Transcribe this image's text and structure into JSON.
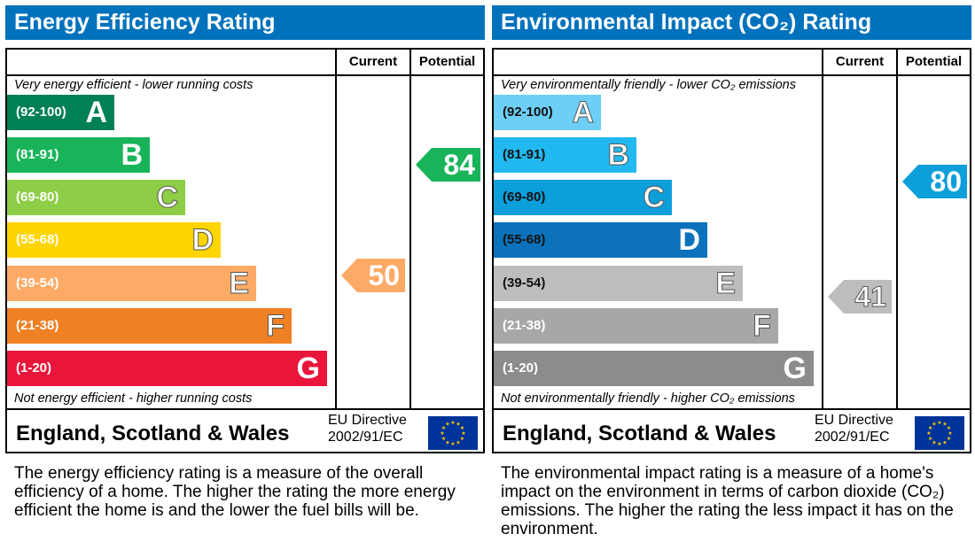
{
  "panels": [
    {
      "title": "Energy Efficiency Rating",
      "col_current": "Current",
      "col_potential": "Potential",
      "top_note": "Very energy efficient - lower running costs",
      "bottom_note": "Not energy efficient - higher running costs",
      "bands": [
        {
          "range": "(92-100)",
          "letter": "A",
          "color": "#008054"
        },
        {
          "range": "(81-91)",
          "letter": "B",
          "color": "#19b459"
        },
        {
          "range": "(69-80)",
          "letter": "C",
          "color": "#8dce46"
        },
        {
          "range": "(55-68)",
          "letter": "D",
          "color": "#ffd500"
        },
        {
          "range": "(39-54)",
          "letter": "E",
          "color": "#fcaa65"
        },
        {
          "range": "(21-38)",
          "letter": "F",
          "color": "#ef8023"
        },
        {
          "range": "(1-20)",
          "letter": "G",
          "color": "#e9153b"
        }
      ],
      "current": {
        "value": "50",
        "band": "E",
        "color": "#fcaa65"
      },
      "potential": {
        "value": "84",
        "band": "B",
        "color": "#19b459"
      },
      "region": "England, Scotland & Wales",
      "directive_line1": "EU Directive",
      "directive_line2": "2002/91/EC",
      "description": "The energy efficiency rating is a measure of the overall efficiency of a home. The higher the rating the more energy efficient the home is and the lower the fuel bills will be."
    },
    {
      "title": "Environmental Impact (CO₂) Rating",
      "col_current": "Current",
      "col_potential": "Potential",
      "top_note": "Very environmentally friendly - lower CO₂ emissions",
      "bottom_note": "Not environmentally friendly - higher CO₂ emissions",
      "bands": [
        {
          "range": "(92-100)",
          "letter": "A",
          "color": "#6dcff6"
        },
        {
          "range": "(81-91)",
          "letter": "B",
          "color": "#22b9f0"
        },
        {
          "range": "(69-80)",
          "letter": "C",
          "color": "#0d9fda"
        },
        {
          "range": "(55-68)",
          "letter": "D",
          "color": "#0b72bb"
        },
        {
          "range": "(39-54)",
          "letter": "E",
          "color": "#bbbdbf"
        },
        {
          "range": "(21-38)",
          "letter": "F",
          "color": "#a5a7a9"
        },
        {
          "range": "(1-20)",
          "letter": "G",
          "color": "#8a8c8e"
        }
      ],
      "current": {
        "value": "41",
        "band": "E",
        "color": "#bbbdbf"
      },
      "potential": {
        "value": "80",
        "band": "C",
        "color": "#0d9fda"
      },
      "region": "England, Scotland & Wales",
      "directive_line1": "EU Directive",
      "directive_line2": "2002/91/EC",
      "description": "The environmental impact rating is a measure of a home's impact on the environment in terms of carbon dioxide (CO₂) emissions. The higher the rating the less impact it has on the environment."
    }
  ]
}
